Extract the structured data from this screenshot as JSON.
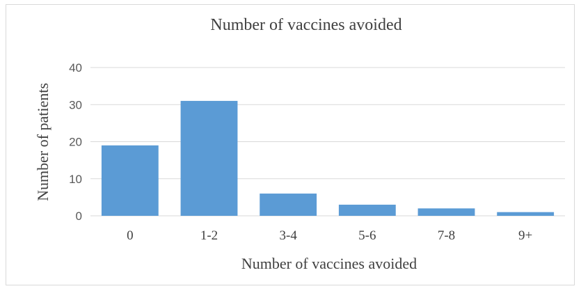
{
  "chart_data": {
    "type": "bar",
    "title": "Number of vaccines avoided",
    "xlabel": "Number of vaccines avoided",
    "ylabel": "Number of patients",
    "categories": [
      "0",
      "1-2",
      "3-4",
      "5-6",
      "7-8",
      "9+"
    ],
    "values": [
      19,
      31,
      6,
      3,
      2,
      1
    ],
    "ylim": [
      0,
      40
    ],
    "yticks": [
      "0",
      "10",
      "20",
      "30",
      "40"
    ],
    "grid": true,
    "legend": "none",
    "bar_color": "#5b9bd5",
    "grid_color": "#d9d9d9"
  }
}
